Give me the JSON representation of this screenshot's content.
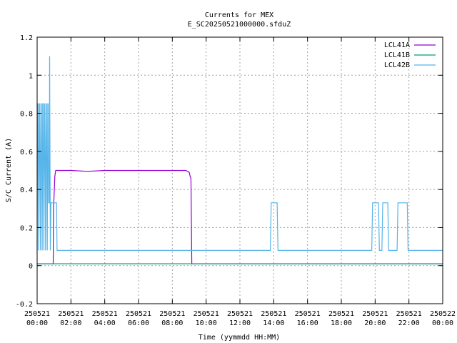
{
  "chart_data": {
    "type": "line",
    "title": "Currents for MEX",
    "subtitle": "E_SC20250521000000.sfduZ",
    "xlabel": "Time (yymmdd HH:MM)",
    "ylabel": "S/C Current (A)",
    "xlim": [
      0,
      24
    ],
    "ylim": [
      -0.2,
      1.2
    ],
    "grid": true,
    "legend_position": "top-right",
    "x_ticks": [
      {
        "value": 0,
        "line1": "250521",
        "line2": "00:00"
      },
      {
        "value": 2,
        "line1": "250521",
        "line2": "02:00"
      },
      {
        "value": 4,
        "line1": "250521",
        "line2": "04:00"
      },
      {
        "value": 6,
        "line1": "250521",
        "line2": "06:00"
      },
      {
        "value": 8,
        "line1": "250521",
        "line2": "08:00"
      },
      {
        "value": 10,
        "line1": "250521",
        "line2": "10:00"
      },
      {
        "value": 12,
        "line1": "250521",
        "line2": "12:00"
      },
      {
        "value": 14,
        "line1": "250521",
        "line2": "14:00"
      },
      {
        "value": 16,
        "line1": "250521",
        "line2": "16:00"
      },
      {
        "value": 18,
        "line1": "250521",
        "line2": "18:00"
      },
      {
        "value": 20,
        "line1": "250521",
        "line2": "20:00"
      },
      {
        "value": 22,
        "line1": "250521",
        "line2": "22:00"
      },
      {
        "value": 24,
        "line1": "250522",
        "line2": "00:00"
      }
    ],
    "y_ticks": [
      {
        "value": -0.2,
        "label": "-0.2"
      },
      {
        "value": 0,
        "label": "0"
      },
      {
        "value": 0.2,
        "label": "0.2"
      },
      {
        "value": 0.4,
        "label": "0.4"
      },
      {
        "value": 0.6,
        "label": "0.6"
      },
      {
        "value": 0.8,
        "label": "0.8"
      },
      {
        "value": 1,
        "label": "1"
      },
      {
        "value": 1.2,
        "label": "1.2"
      }
    ],
    "series": [
      {
        "name": "LCL41A",
        "color": "#9400d3",
        "x": [
          0,
          0.5,
          0.95,
          0.97,
          1.05,
          1.1,
          1.3,
          2,
          3,
          4,
          5,
          6,
          7,
          8,
          8.8,
          9.0,
          9.05,
          9.1,
          9.15,
          9.2,
          12,
          16,
          20,
          24
        ],
        "y": [
          0.01,
          0.01,
          0.01,
          0.3,
          0.47,
          0.5,
          0.5,
          0.5,
          0.495,
          0.5,
          0.5,
          0.5,
          0.5,
          0.5,
          0.5,
          0.49,
          0.47,
          0.46,
          0.01,
          0.01,
          0.01,
          0.01,
          0.01,
          0.01
        ]
      },
      {
        "name": "LCL41B",
        "color": "#009e73",
        "x": [
          0,
          24
        ],
        "y": [
          0.01,
          0.01
        ]
      },
      {
        "name": "LCL42B",
        "color": "#56b4e9",
        "x": [
          0,
          0.03,
          0.05,
          0.1,
          0.13,
          0.15,
          0.2,
          0.23,
          0.25,
          0.3,
          0.33,
          0.35,
          0.4,
          0.43,
          0.45,
          0.5,
          0.53,
          0.55,
          0.6,
          0.63,
          0.65,
          0.68,
          0.72,
          0.74,
          0.78,
          0.82,
          0.9,
          1.15,
          1.18,
          1.2,
          3,
          6,
          9,
          12,
          13.8,
          13.85,
          14.2,
          14.25,
          16,
          19.8,
          19.85,
          20.2,
          20.25,
          20.4,
          20.45,
          20.75,
          20.8,
          21.3,
          21.35,
          21.45,
          21.5,
          21.9,
          21.95,
          24
        ],
        "y": [
          0.08,
          0.85,
          0.85,
          0.08,
          0.85,
          0.85,
          0.08,
          0.85,
          0.85,
          0.08,
          0.85,
          0.85,
          0.08,
          0.85,
          0.85,
          0.08,
          0.85,
          0.85,
          0.08,
          0.85,
          0.85,
          0.33,
          0.33,
          1.1,
          0.08,
          0.33,
          0.33,
          0.33,
          0.08,
          0.08,
          0.08,
          0.08,
          0.08,
          0.08,
          0.08,
          0.33,
          0.33,
          0.08,
          0.08,
          0.08,
          0.33,
          0.33,
          0.08,
          0.08,
          0.33,
          0.33,
          0.08,
          0.08,
          0.33,
          0.33,
          0.33,
          0.33,
          0.08,
          0.08
        ]
      }
    ]
  }
}
